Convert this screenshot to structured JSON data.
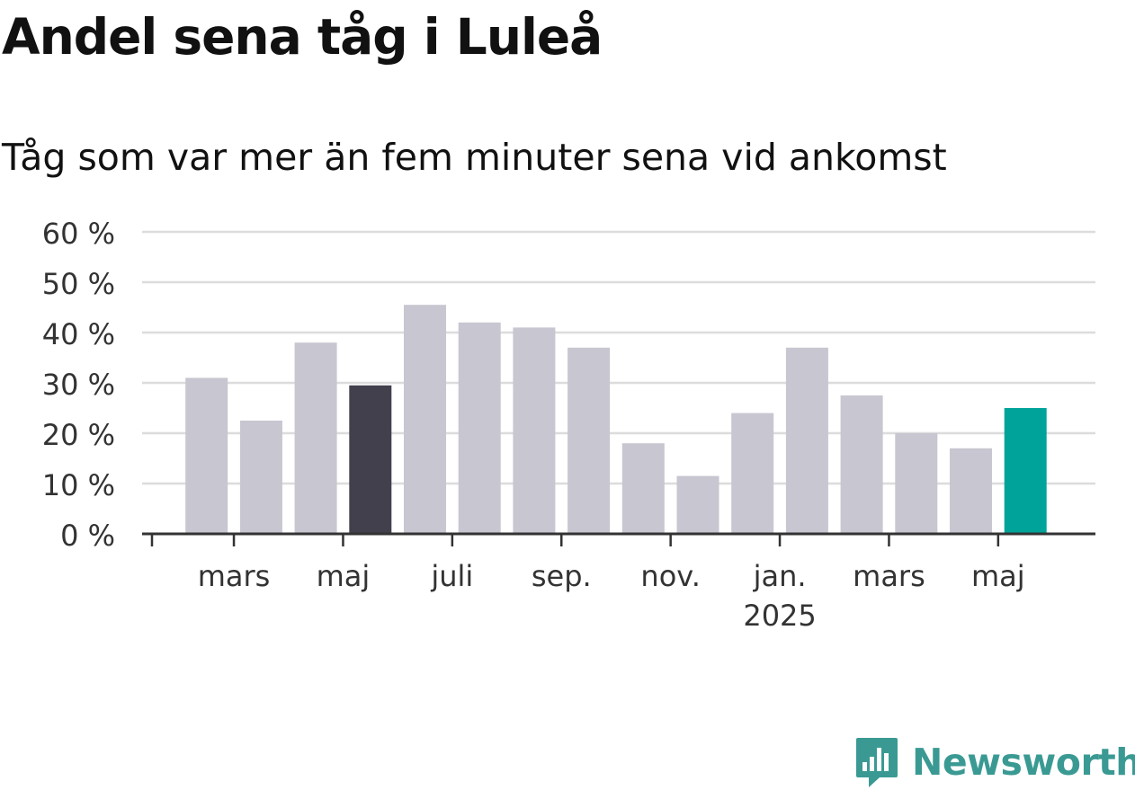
{
  "header": {
    "title": "Andel sena tåg i Luleå",
    "subtitle": "Tåg som var mer än fem minuter sena vid ankomst"
  },
  "logo": {
    "text": "Newsworthy",
    "icon": "newsworthy-logo-icon",
    "color": "#3a9a93"
  },
  "colors": {
    "bar_default": "#c8c6d0",
    "bar_highlight_dark": "#43404d",
    "bar_highlight_accent": "#00a39a",
    "grid": "#dcdcdc",
    "axis": "#333333"
  },
  "chart_data": {
    "type": "bar",
    "categories": [
      "2024-02",
      "2024-03",
      "2024-04",
      "2024-05",
      "2024-06",
      "2024-07",
      "2024-08",
      "2024-09",
      "2024-10",
      "2024-11",
      "2024-12",
      "2025-01",
      "2025-02",
      "2025-03",
      "2025-04",
      "2025-05"
    ],
    "values": [
      31,
      22.5,
      38,
      29.5,
      45.5,
      42,
      41,
      37,
      18,
      11.5,
      24,
      37,
      27.5,
      20,
      17,
      25
    ],
    "highlight": {
      "3": "dark",
      "15": "accent"
    },
    "ylim": [
      0,
      60
    ],
    "yticks": [
      0,
      10,
      20,
      30,
      40,
      50,
      60
    ],
    "ytick_labels": [
      "0 %",
      "10 %",
      "20 %",
      "30 %",
      "40 %",
      "50 %",
      "60 %"
    ],
    "xtick_labels": [
      {
        "month": "2024-03",
        "label": "mars",
        "sub": ""
      },
      {
        "month": "2024-05",
        "label": "maj",
        "sub": ""
      },
      {
        "month": "2024-07",
        "label": "juli",
        "sub": ""
      },
      {
        "month": "2024-09",
        "label": "sep.",
        "sub": ""
      },
      {
        "month": "2024-11",
        "label": "nov.",
        "sub": ""
      },
      {
        "month": "2025-01",
        "label": "jan.",
        "sub": "2025"
      },
      {
        "month": "2025-03",
        "label": "mars",
        "sub": ""
      },
      {
        "month": "2025-05",
        "label": "maj",
        "sub": ""
      }
    ],
    "grid": true,
    "legend": "none"
  }
}
